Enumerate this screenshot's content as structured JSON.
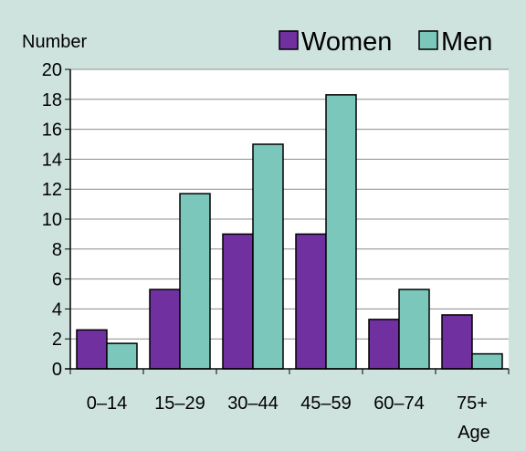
{
  "chart_data": {
    "type": "bar",
    "categories": [
      "0–14",
      "15–29",
      "30–44",
      "45–59",
      "60–74",
      "75+"
    ],
    "series": [
      {
        "name": "Women",
        "color": "#7030a0",
        "values": [
          2.6,
          5.3,
          9.0,
          9.0,
          3.3,
          3.6
        ]
      },
      {
        "name": "Men",
        "color": "#7cc7bb",
        "values": [
          1.7,
          11.7,
          15.0,
          18.3,
          5.3,
          1.0
        ]
      }
    ],
    "ylabel": "Number",
    "xlabel": "Age",
    "ylim": [
      0,
      20
    ],
    "yticks": [
      0,
      2,
      4,
      6,
      8,
      10,
      12,
      14,
      16,
      18,
      20
    ],
    "grid": true,
    "legend_position": "top-right",
    "background_color": "#cfe3de",
    "plot_background_color": "#ffffff"
  }
}
